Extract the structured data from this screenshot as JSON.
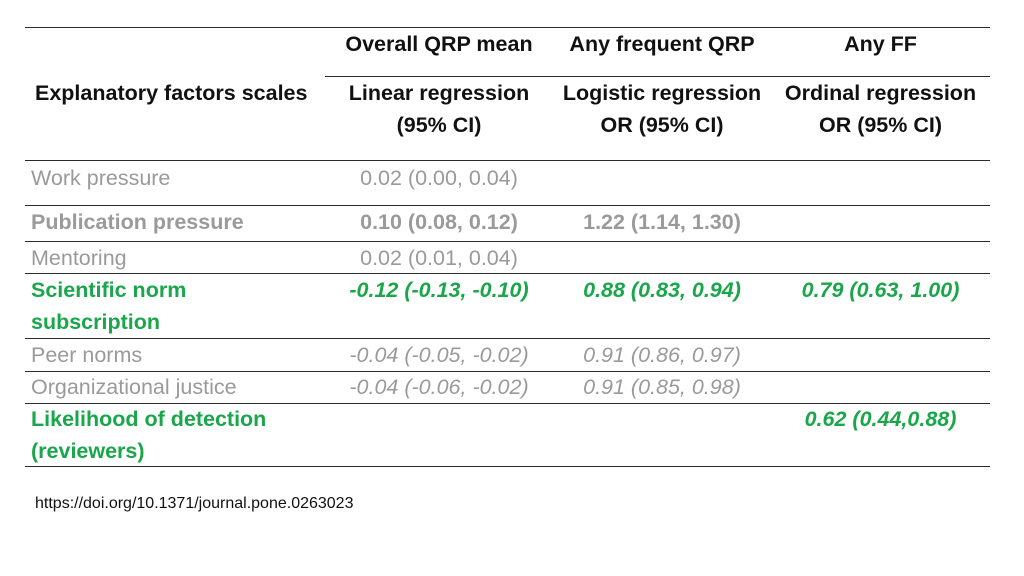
{
  "table": {
    "header": {
      "row_label": "Explanatory factors scales",
      "groups": [
        "Overall QRP mean",
        "Any frequent QRP",
        "Any FF"
      ],
      "methods": [
        [
          "Linear regression",
          "(95% CI)"
        ],
        [
          "Logistic regression",
          "OR (95% CI)"
        ],
        [
          "Ordinal regression",
          "OR (95% CI)"
        ]
      ]
    },
    "rows": [
      {
        "label": [
          "Work pressure"
        ],
        "values": [
          "0.02 (0.00, 0.04)",
          "",
          ""
        ]
      },
      {
        "label": [
          "Publication pressure"
        ],
        "values": [
          "0.10 (0.08, 0.12)",
          "1.22 (1.14, 1.30)",
          ""
        ]
      },
      {
        "label": [
          "Mentoring"
        ],
        "values": [
          "0.02 (0.01, 0.04)",
          "",
          ""
        ]
      },
      {
        "label": [
          "Scientific norm",
          "subscription"
        ],
        "values": [
          "-0.12 (-0.13, -0.10)",
          "0.88 (0.83, 0.94)",
          "0.79 (0.63, 1.00)"
        ]
      },
      {
        "label": [
          "Peer norms"
        ],
        "values": [
          "-0.04 (-0.05, -0.02)",
          "0.91 (0.86, 0.97)",
          ""
        ]
      },
      {
        "label": [
          "Organizational justice"
        ],
        "values": [
          "-0.04 (-0.06, -0.02)",
          "0.91 (0.85, 0.98)",
          ""
        ]
      },
      {
        "label": [
          "Likelihood of detection",
          "(reviewers)"
        ],
        "values": [
          "",
          "",
          "0.62 (0.44,0.88)"
        ]
      }
    ]
  },
  "source": "https://doi.org/10.1371/journal.pone.0263023",
  "colors": {
    "highlight": "#1aa64a",
    "muted": "#9a9a9a",
    "text": "#111111",
    "rule": "#2b2b2b"
  }
}
